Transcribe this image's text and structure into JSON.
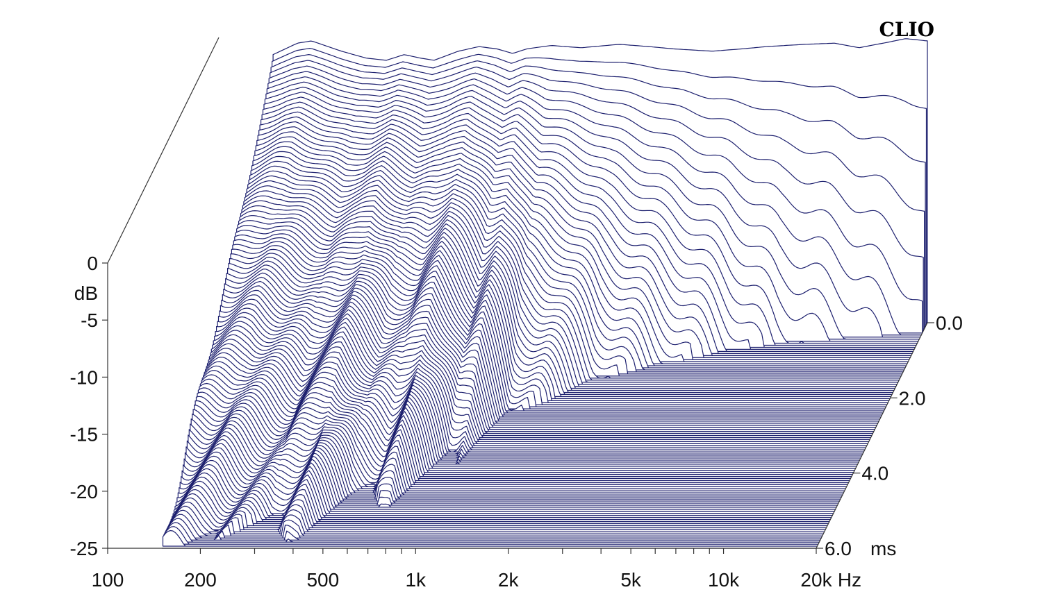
{
  "brand": "CLIO",
  "colors": {
    "line": "#1c1f6e",
    "floor": "#1c1f6e",
    "background": "#ffffff"
  },
  "chart_data": {
    "type": "waterfall",
    "title": "",
    "xlabel": "Hz",
    "ylabel": "dB",
    "zlabel": "ms",
    "x_scale": "log",
    "xlim": [
      100,
      20000
    ],
    "ylim": [
      -25,
      0
    ],
    "zlim": [
      0,
      6.0
    ],
    "x_ticks": [
      {
        "value": 100,
        "label": "100"
      },
      {
        "value": 200,
        "label": "200"
      },
      {
        "value": 500,
        "label": "500"
      },
      {
        "value": 1000,
        "label": "1k"
      },
      {
        "value": 2000,
        "label": "2k"
      },
      {
        "value": 5000,
        "label": "5k"
      },
      {
        "value": 10000,
        "label": "10k"
      },
      {
        "value": 20000,
        "label": "20k"
      }
    ],
    "y_ticks": [
      {
        "value": 0,
        "label": "0"
      },
      {
        "value": -5,
        "label": "-5"
      },
      {
        "value": -10,
        "label": "-10"
      },
      {
        "value": -15,
        "label": "-15"
      },
      {
        "value": -20,
        "label": "-20"
      },
      {
        "value": -25,
        "label": "-25"
      }
    ],
    "z_ticks": [
      {
        "value": 0.0,
        "label": "0.0"
      },
      {
        "value": 2.0,
        "label": "2.0"
      },
      {
        "value": 4.0,
        "label": "4.0"
      },
      {
        "value": 6.0,
        "label": "6.0"
      }
    ],
    "initial_response": {
      "freq": [
        150,
        180,
        200,
        250,
        300,
        350,
        400,
        450,
        500,
        600,
        700,
        800,
        900,
        1000,
        1200,
        1500,
        2000,
        2500,
        3000,
        4000,
        5000,
        6000,
        8000,
        10000,
        12000,
        15000,
        17000,
        20000
      ],
      "db": [
        -1.5,
        -0.5,
        -0.3,
        -1.2,
        -1.8,
        -2.0,
        -1.5,
        -1.8,
        -2.0,
        -1.2,
        -0.8,
        -1.0,
        -1.4,
        -1.0,
        -0.7,
        -0.9,
        -0.6,
        -0.8,
        -1.0,
        -1.2,
        -1.0,
        -0.8,
        -0.6,
        -0.5,
        -0.9,
        -0.4,
        -0.1,
        -0.3
      ]
    },
    "decay_ms_to_floor": {
      "freq": [
        150,
        200,
        300,
        400,
        500,
        600,
        700,
        900,
        1000,
        1200,
        1500,
        2000,
        3000,
        5000,
        7000,
        10000,
        20000
      ],
      "ms": [
        6.0,
        6.0,
        5.2,
        6.0,
        4.8,
        4.5,
        5.2,
        3.5,
        3.8,
        2.5,
        2.2,
        1.6,
        1.2,
        0.8,
        0.6,
        0.5,
        0.3
      ]
    }
  }
}
